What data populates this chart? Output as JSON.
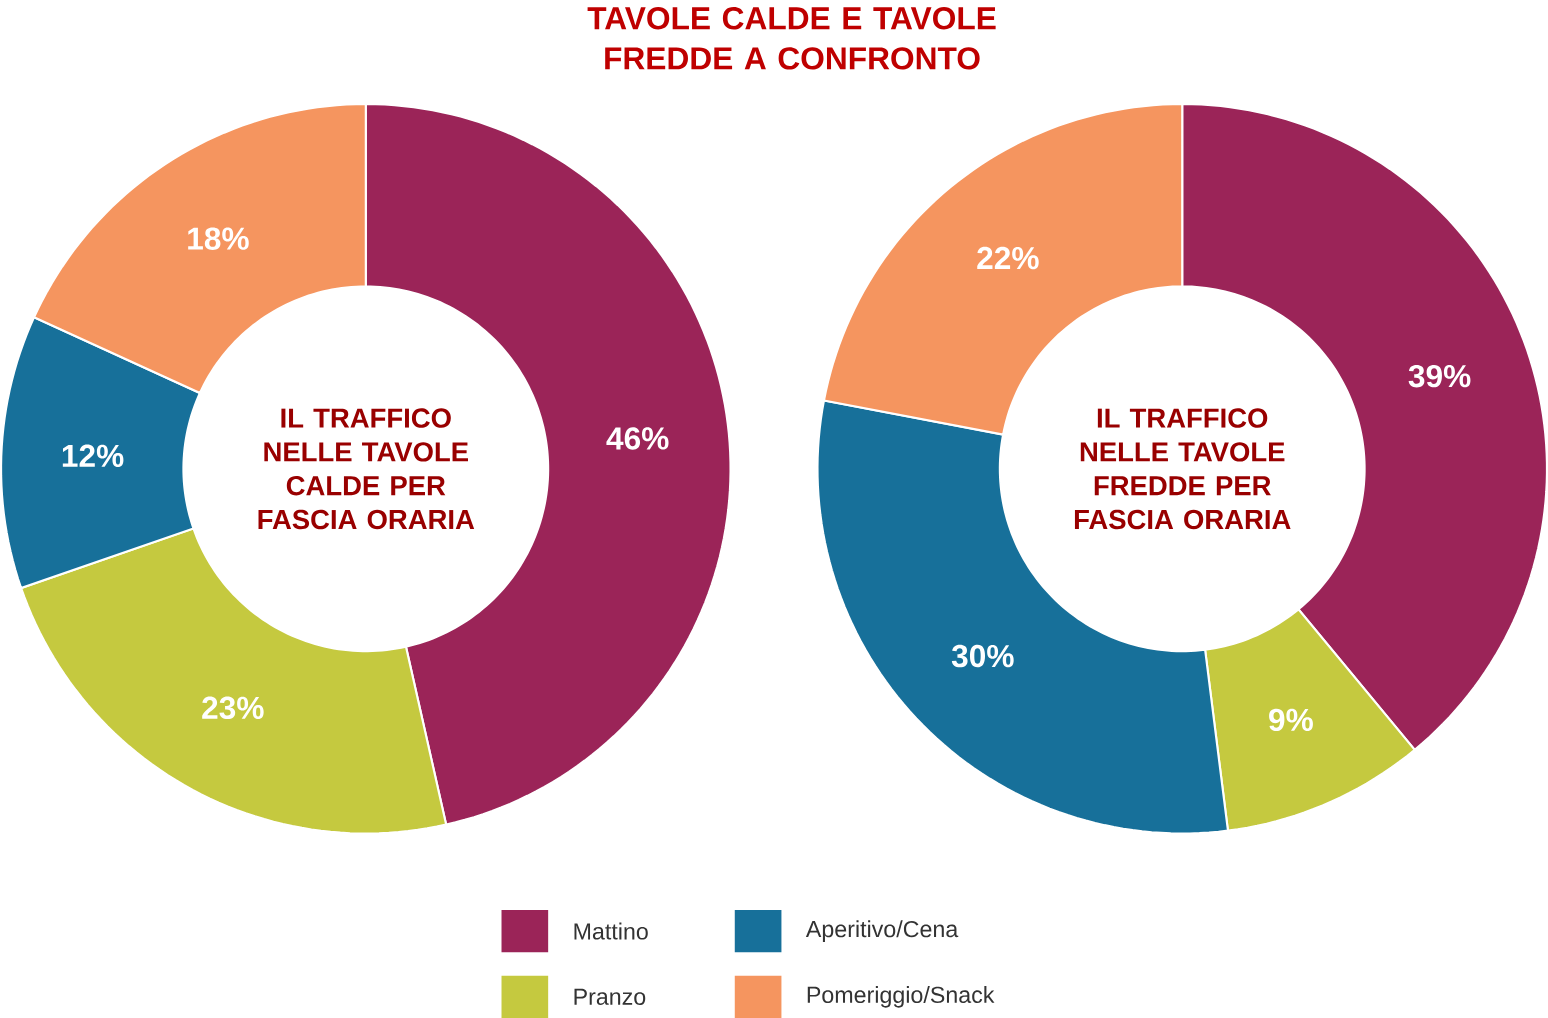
{
  "chart_data": [
    {
      "type": "donut",
      "title": "IL TRAFFICO NELLE TAVOLE CALDE PER FASCIA ORARIA",
      "annotations": [
        "TAVOLE CALDE E TAVOLE FREDDE A CONFRONTO"
      ],
      "categories": [
        "Mattino",
        "Pranzo",
        "Aperitivo/Cena",
        "Pomeriggio/Snack"
      ],
      "values": [
        46,
        23,
        12,
        18
      ],
      "value_labels": [
        "46%",
        "23%",
        "12%",
        "18%"
      ],
      "colors": [
        "#9b2458",
        "#c5c93f",
        "#17709a",
        "#f5955f"
      ],
      "legend": "bottom"
    },
    {
      "type": "donut",
      "title": "IL TRAFFICO NELLE TAVOLE FREDDE PER FASCIA ORARIA",
      "categories": [
        null,
        null,
        null,
        null
      ],
      "values": [
        39,
        9,
        30,
        22
      ],
      "value_labels": [
        "39%",
        "9%",
        "30%",
        "22%"
      ],
      "colors": [
        "#9b2458",
        "#c5c93f",
        "#17709a",
        "#f5955f"
      ]
    }
  ]
}
